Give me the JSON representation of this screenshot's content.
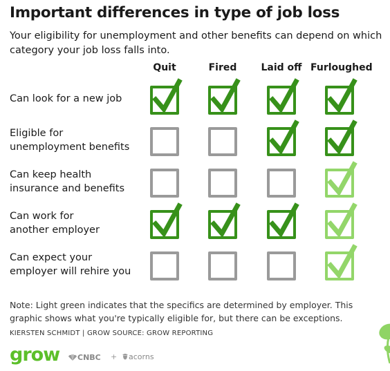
{
  "header": {
    "title": "Important differences in type of job loss",
    "subtitle": "Your eligibility for unemployment and other benefits can depend on which category your job loss falls into."
  },
  "columns": [
    "Quit",
    "Fired",
    "Laid off",
    "Furloughed"
  ],
  "rows": [
    {
      "label_lines": [
        "Can look for a new job"
      ],
      "cells": [
        "checked",
        "checked",
        "checked",
        "checked"
      ]
    },
    {
      "label_lines": [
        "Eligible for",
        "unemployment benefits"
      ],
      "cells": [
        "empty",
        "empty",
        "checked",
        "checked"
      ]
    },
    {
      "label_lines": [
        "Can keep health",
        "insurance and benefits"
      ],
      "cells": [
        "empty",
        "empty",
        "empty",
        "employer"
      ]
    },
    {
      "label_lines": [
        "Can work for",
        "another employer"
      ],
      "cells": [
        "checked",
        "checked",
        "checked",
        "employer"
      ]
    },
    {
      "label_lines": [
        "Can expect your",
        "employer will rehire you"
      ],
      "cells": [
        "empty",
        "empty",
        "empty",
        "employer"
      ]
    }
  ],
  "colors": {
    "checked": "#37911a",
    "employer": "#93d66a",
    "empty": "#9a9a9a",
    "brand_green": "#5cbf2a"
  },
  "footer": {
    "note": "Note: Light green indicates that the specifics are determined by employer. This graphic shows what you're typically eligible for, but there can be exceptions.",
    "credit": "KIERSTEN SCHMIDT | GROW SOURCE: GROW REPORTING",
    "brand": "grow",
    "partner1": "CNBC",
    "plus": "+",
    "partner2": "acorns"
  }
}
